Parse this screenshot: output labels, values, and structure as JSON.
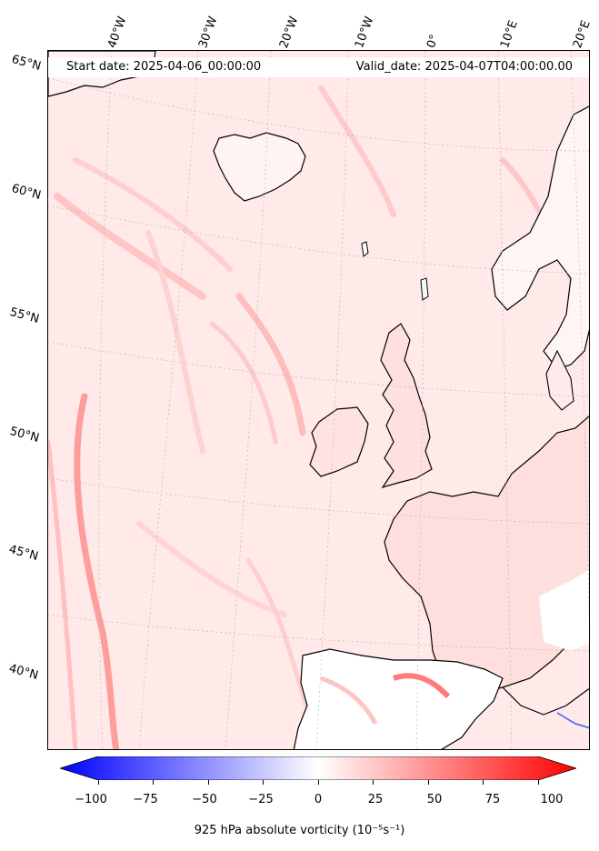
{
  "map": {
    "start_date_text": "Start date: 2025-04-06_00:00:00",
    "valid_date_text": "Valid_date: 2025-04-07T04:00:00.00",
    "latitude_labels": [
      "65°N",
      "60°N",
      "55°N",
      "50°N",
      "45°N",
      "40°N"
    ],
    "longitude_labels": [
      "40°W",
      "30°W",
      "20°W",
      "10°W",
      "0°",
      "10°E",
      "20°E"
    ],
    "field_colors": {
      "background": "#ffe9e9",
      "positive_light": "#ffd9d9",
      "positive_mid": "#ffbfbf",
      "positive_strong": "#ff7a7a",
      "near_zero": "#ffffff",
      "negative_light": "#dde3ff",
      "coastline": "#000000"
    }
  },
  "colorbar": {
    "tick_labels": [
      "−100",
      "−75",
      "−50",
      "−25",
      "0",
      "25",
      "50",
      "75",
      "100"
    ],
    "min": -100,
    "max": 100,
    "colormap": "bwr",
    "extend": "both",
    "label": "925 hPa absolute vorticity (10⁻⁵s⁻¹)"
  }
}
